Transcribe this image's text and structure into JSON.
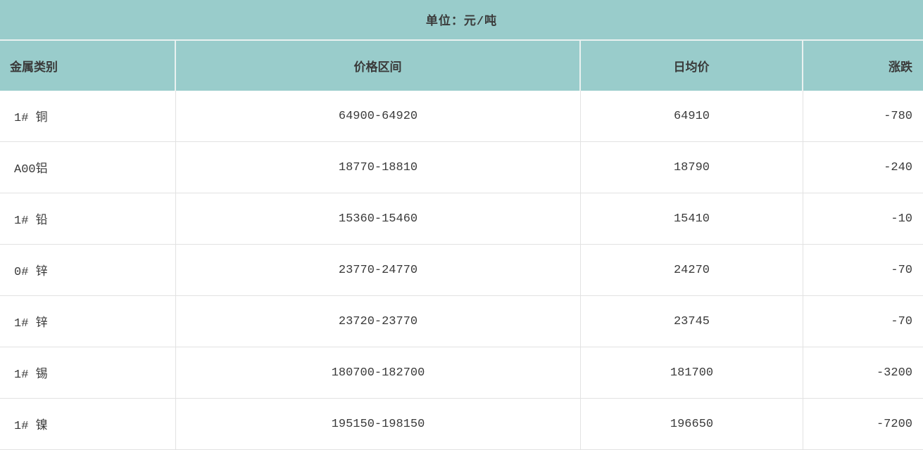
{
  "banner": {
    "title": "单位：元/吨"
  },
  "table": {
    "columns": [
      {
        "label": "金属类别",
        "align": "left"
      },
      {
        "label": "价格区间",
        "align": "center"
      },
      {
        "label": "日均价",
        "align": "center"
      },
      {
        "label": "涨跌",
        "align": "right"
      }
    ],
    "rows": [
      {
        "metal": "1# 铜",
        "range": "64900-64920",
        "avg": "64910",
        "change": "-780"
      },
      {
        "metal": "A00铝",
        "range": "18770-18810",
        "avg": "18790",
        "change": "-240"
      },
      {
        "metal": "1# 铅",
        "range": "15360-15460",
        "avg": "15410",
        "change": "-10"
      },
      {
        "metal": "0# 锌",
        "range": "23770-24770",
        "avg": "24270",
        "change": "-70"
      },
      {
        "metal": "1# 锌",
        "range": "23720-23770",
        "avg": "23745",
        "change": "-70"
      },
      {
        "metal": "1# 锡",
        "range": "180700-182700",
        "avg": "181700",
        "change": "-3200"
      },
      {
        "metal": "1# 镍",
        "range": "195150-198150",
        "avg": "196650",
        "change": "-7200"
      }
    ]
  },
  "colors": {
    "header_bg": "#99cccb",
    "header_divider": "#e9f1f0",
    "row_border": "#e2e2e2",
    "text": "#3a3a3a"
  }
}
